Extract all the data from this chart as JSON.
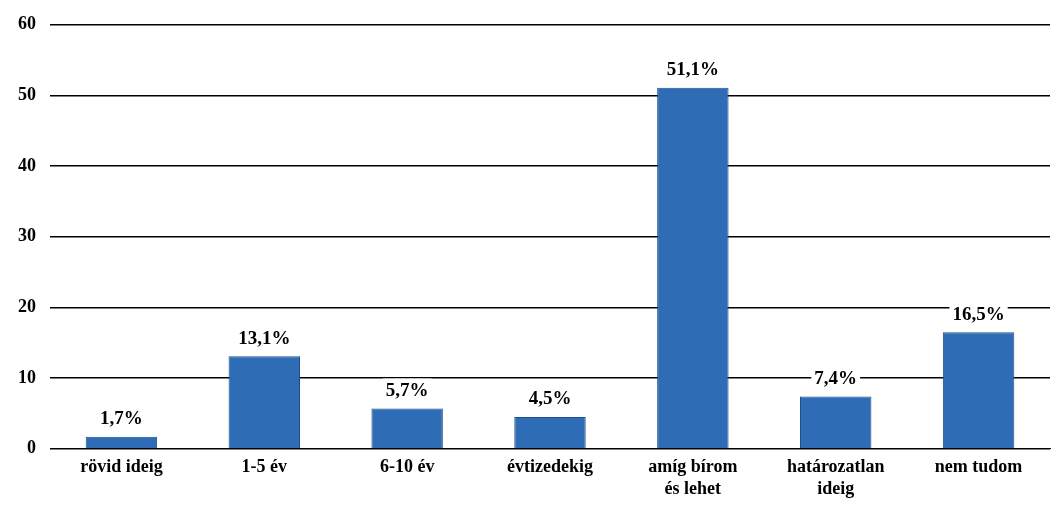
{
  "chart_data": {
    "type": "bar",
    "categories": [
      "rövid ideig",
      "1-5 év",
      "6-10 év",
      "évtizedekig",
      "amíg bírom és lehet",
      "határozatlan ideig",
      "nem tudom"
    ],
    "values": [
      1.7,
      13.1,
      5.7,
      4.5,
      51.1,
      7.4,
      16.5
    ],
    "value_labels": [
      "1,7%",
      "13,1%",
      "5,7%",
      "4,5%",
      "51,1%",
      "7,4%",
      "16,5%"
    ],
    "color": "#2e6cb5",
    "ylim": [
      0,
      60
    ],
    "yticks": [
      0,
      10,
      20,
      30,
      40,
      50,
      60
    ],
    "grid": "y",
    "legend": false
  }
}
